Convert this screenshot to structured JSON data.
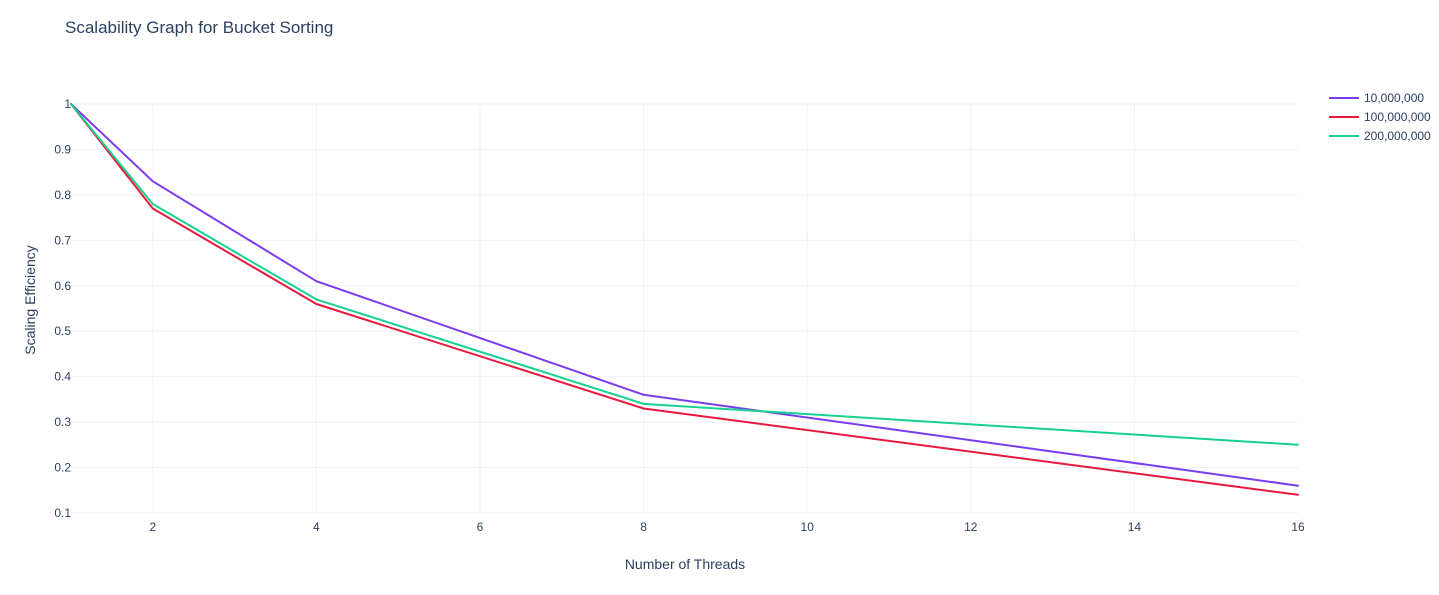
{
  "chart_data": {
    "type": "line",
    "title": "Scalability Graph for Bucket Sorting",
    "xlabel": "Number of Threads",
    "ylabel": "Scaling Efficiency",
    "x": [
      1,
      2,
      4,
      8,
      16
    ],
    "xlim": [
      1,
      16
    ],
    "ylim": [
      0.1,
      1.0
    ],
    "x_ticks": [
      2,
      4,
      6,
      8,
      10,
      12,
      14,
      16
    ],
    "y_ticks": [
      0.1,
      0.2,
      0.3,
      0.4,
      0.5,
      0.6,
      0.7,
      0.8,
      0.9,
      1
    ],
    "grid": true,
    "legend_position": "top-right",
    "series": [
      {
        "name": "10,000,000",
        "color": "#7b3cf0",
        "values": [
          1.0,
          0.83,
          0.61,
          0.36,
          0.16
        ]
      },
      {
        "name": "100,000,000",
        "color": "#e8193c",
        "values": [
          1.0,
          0.77,
          0.56,
          0.33,
          0.14
        ]
      },
      {
        "name": "200,000,000",
        "color": "#17d18f",
        "values": [
          1.0,
          0.78,
          0.57,
          0.34,
          0.25
        ]
      }
    ]
  }
}
